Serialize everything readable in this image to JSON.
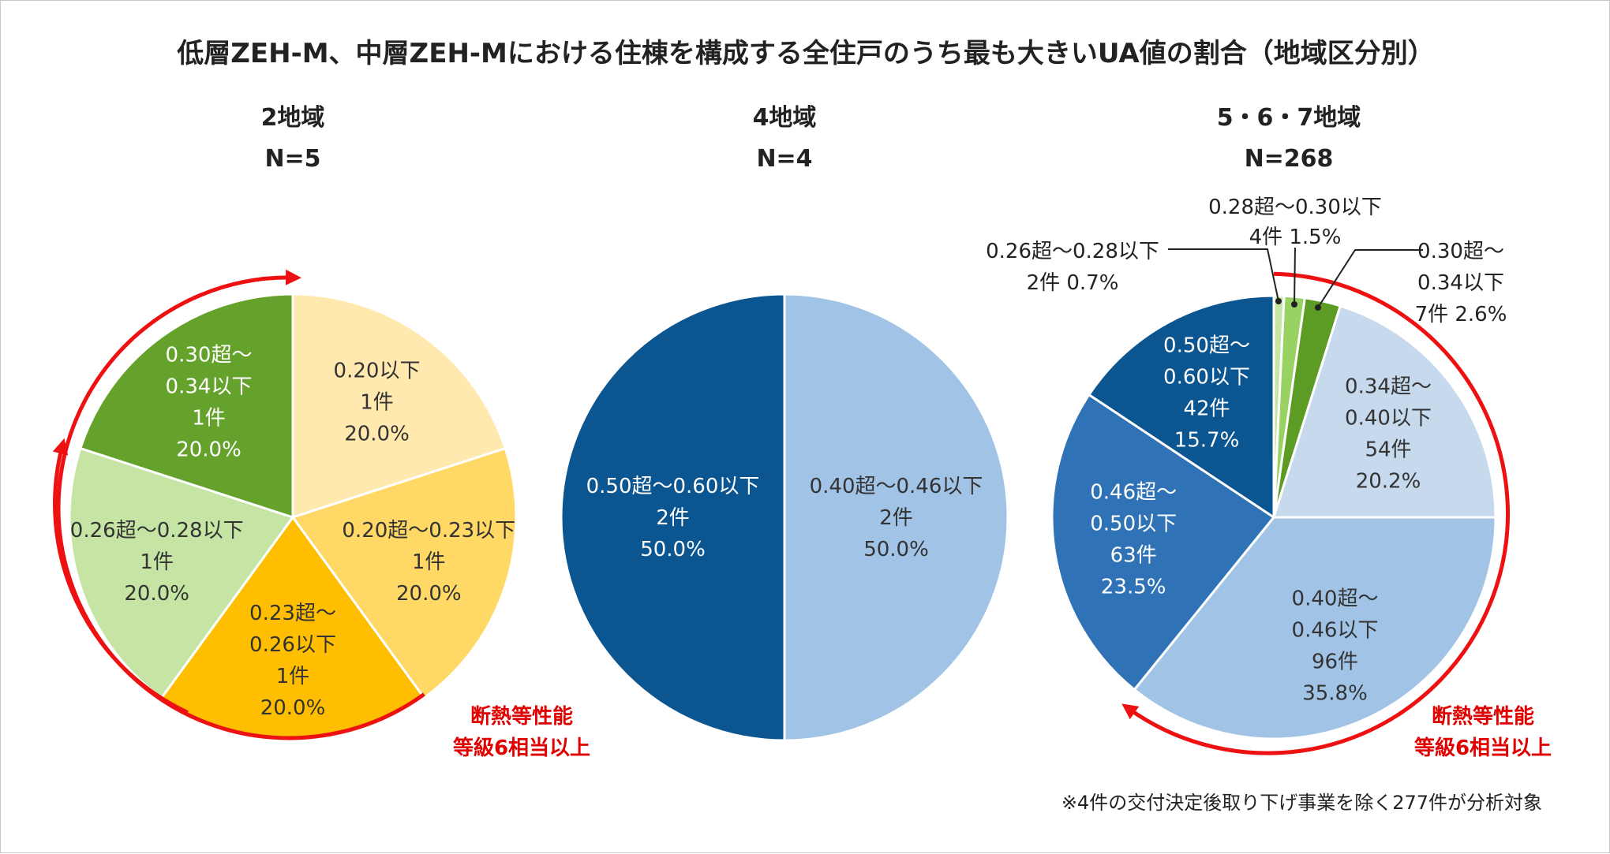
{
  "title": "低層ZEH-M、中層ZEH-Mにおける住棟を構成する全住戸のうち最も大きいUA値の割合（地域区分別）",
  "footnote": "※4件の交付決定後取り下げ事業を除く277件が分析対象",
  "annotation": [
    "断熱等性能",
    "等級6相当以上"
  ],
  "colors": {
    "arrow": "#ee1111"
  },
  "chart_data": [
    {
      "type": "pie",
      "region": "2地域",
      "n_label": "N=5",
      "slices": [
        {
          "label": [
            "0.20以下",
            "1件",
            "20.0%"
          ],
          "count": 1,
          "percent": 20.0,
          "color": "#ffe9ae",
          "text_color": "#333333"
        },
        {
          "label": [
            "0.20超～0.23以下",
            "1件",
            "20.0%"
          ],
          "count": 1,
          "percent": 20.0,
          "color": "#ffd866",
          "text_color": "#333333"
        },
        {
          "label": [
            "0.23超～",
            "0.26以下",
            "1件",
            "20.0%"
          ],
          "count": 1,
          "percent": 20.0,
          "color": "#ffbf00",
          "text_color": "#333333"
        },
        {
          "label": [
            "0.26超～0.28以下",
            "1件",
            "20.0%"
          ],
          "count": 1,
          "percent": 20.0,
          "color": "#c6e5a4",
          "text_color": "#333333"
        },
        {
          "label": [
            "0.30超～",
            "0.34以下",
            "1件",
            "20.0%"
          ],
          "count": 1,
          "percent": 20.0,
          "color": "#65a22c",
          "text_color": "#ffffff"
        }
      ]
    },
    {
      "type": "pie",
      "region": "4地域",
      "n_label": "N=4",
      "slices": [
        {
          "label": [
            "0.40超～0.46以下",
            "2件",
            "50.0%"
          ],
          "count": 2,
          "percent": 50.0,
          "color": "#a0c3e6",
          "text_color": "#333333"
        },
        {
          "label": [
            "0.50超～0.60以下",
            "2件",
            "50.0%"
          ],
          "count": 2,
          "percent": 50.0,
          "color": "#0b5591",
          "text_color": "#ffffff"
        }
      ]
    },
    {
      "type": "pie",
      "region": "5・6・7地域",
      "n_label": "N=268",
      "slices": [
        {
          "label": [
            "0.26超～0.28以下",
            "2件  0.7%"
          ],
          "count": 2,
          "percent": 0.7,
          "color": "#c5e5a2",
          "callout": true
        },
        {
          "label": [
            "0.28超～0.30以下",
            "4件  1.5%"
          ],
          "count": 4,
          "percent": 1.5,
          "color": "#97d262",
          "callout": true
        },
        {
          "label": [
            "0.30超～",
            "0.34以下",
            "7件  2.6%"
          ],
          "count": 7,
          "percent": 2.6,
          "color": "#5c9c24",
          "callout": true
        },
        {
          "label": [
            "0.34超～",
            "0.40以下",
            "54件",
            "20.2%"
          ],
          "count": 54,
          "percent": 20.2,
          "color": "#c7d9ec",
          "text_color": "#333333"
        },
        {
          "label": [
            "0.40超～",
            "0.46以下",
            "96件",
            "35.8%"
          ],
          "count": 96,
          "percent": 35.8,
          "color": "#a0c3e6",
          "text_color": "#333333"
        },
        {
          "label": [
            "0.46超～",
            "0.50以下",
            "63件",
            "23.5%"
          ],
          "count": 63,
          "percent": 23.5,
          "color": "#2f72b6",
          "text_color": "#ffffff"
        },
        {
          "label": [
            "0.50超～",
            "0.60以下",
            "42件",
            "15.7%"
          ],
          "count": 42,
          "percent": 15.7,
          "color": "#0b5591",
          "text_color": "#ffffff"
        }
      ]
    }
  ]
}
